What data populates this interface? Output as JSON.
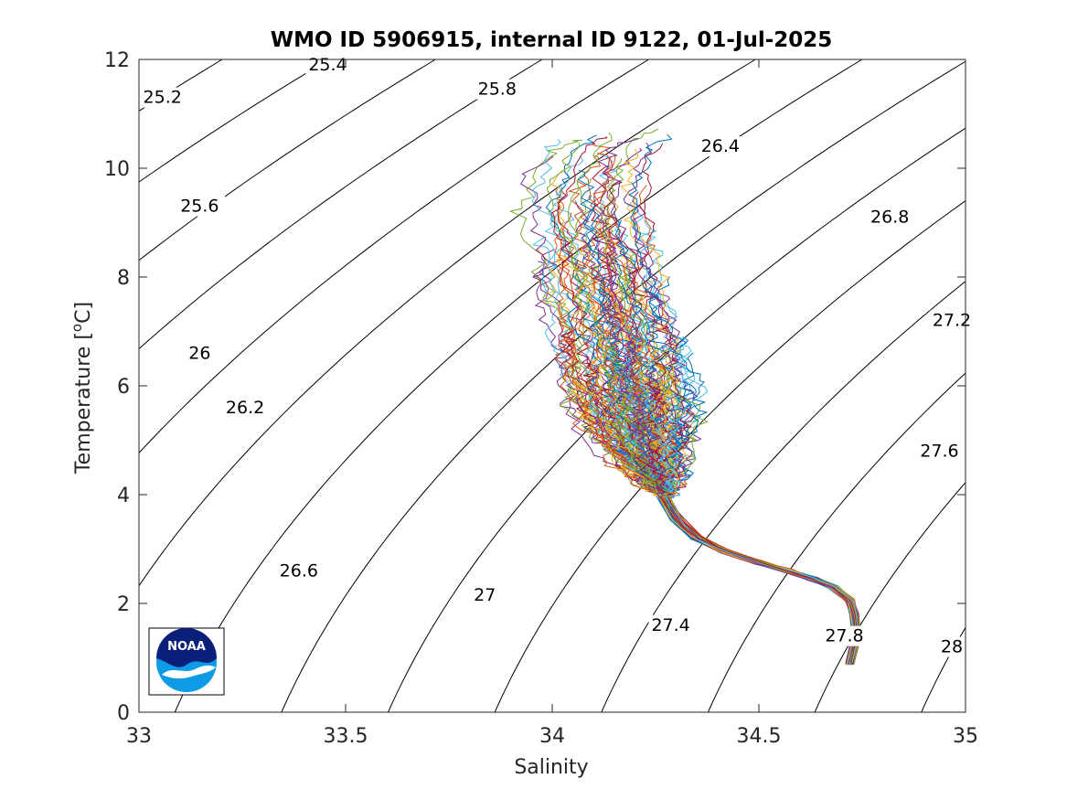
{
  "chart_data": {
    "type": "line",
    "title": "WMO ID 5906915, internal ID 9122, 01-Jul-2025",
    "xlabel": "Salinity",
    "ylabel_main": "Temperature [",
    "ylabel_sup": "o",
    "ylabel_end": "C]",
    "xlim": [
      33,
      35
    ],
    "ylim": [
      0,
      12
    ],
    "xticks": [
      33,
      33.5,
      34,
      34.5,
      35
    ],
    "xtick_labels": [
      "33",
      "33.5",
      "34",
      "34.5",
      "35"
    ],
    "yticks": [
      0,
      2,
      4,
      6,
      8,
      10,
      12
    ],
    "ytick_labels": [
      "0",
      "2",
      "4",
      "6",
      "8",
      "10",
      "12"
    ],
    "grid": false,
    "isopycnals": [
      {
        "sigma": 25.2,
        "label": "25.2",
        "label_s": 33.01,
        "label_t": 11.2
      },
      {
        "sigma": 25.4,
        "label": "25.4",
        "label_s": 33.41,
        "label_t": 11.8
      },
      {
        "sigma": 25.6,
        "label": "25.6",
        "label_s": 33.1,
        "label_t": 9.2
      },
      {
        "sigma": 25.8,
        "label": "25.8",
        "label_s": 33.82,
        "label_t": 11.35
      },
      {
        "sigma": 26.0,
        "label": "26",
        "label_s": 33.12,
        "label_t": 6.5
      },
      {
        "sigma": 26.2,
        "label": "26.2",
        "label_s": 33.21,
        "label_t": 5.5
      },
      {
        "sigma": 26.4,
        "label": "26.4",
        "label_s": 34.36,
        "label_t": 10.3
      },
      {
        "sigma": 26.6,
        "label": "26.6",
        "label_s": 33.34,
        "label_t": 2.5
      },
      {
        "sigma": 26.8,
        "label": "26.8",
        "label_s": 34.77,
        "label_t": 9.0
      },
      {
        "sigma": 27.0,
        "label": "27",
        "label_s": 33.81,
        "label_t": 2.05
      },
      {
        "sigma": 27.2,
        "label": "27.2",
        "label_s": 34.92,
        "label_t": 7.1
      },
      {
        "sigma": 27.4,
        "label": "27.4",
        "label_s": 34.24,
        "label_t": 1.5
      },
      {
        "sigma": 27.6,
        "label": "27.6",
        "label_s": 34.89,
        "label_t": 4.7
      },
      {
        "sigma": 27.8,
        "label": "27.8",
        "label_s": 34.66,
        "label_t": 1.3
      },
      {
        "sigma": 28.0,
        "label": "28",
        "label_s": 34.94,
        "label_t": 1.1
      }
    ],
    "profile_colors": [
      "#0072BD",
      "#D95319",
      "#EDB120",
      "#7E2F8E",
      "#77AC30",
      "#4DBEEE",
      "#A2142F"
    ],
    "profile_count": 140,
    "envelope": {
      "cold_branch": [
        [
          34.72,
          0.9
        ],
        [
          34.73,
          1.2
        ],
        [
          34.735,
          1.5
        ],
        [
          34.73,
          1.8
        ],
        [
          34.72,
          2.05
        ],
        [
          34.68,
          2.3
        ],
        [
          34.63,
          2.45
        ],
        [
          34.57,
          2.6
        ],
        [
          34.5,
          2.75
        ],
        [
          34.42,
          2.95
        ],
        [
          34.35,
          3.2
        ],
        [
          34.3,
          3.55
        ],
        [
          34.27,
          3.95
        ]
      ],
      "core": [
        [
          34.27,
          4.0
        ],
        [
          34.25,
          4.4
        ],
        [
          34.23,
          4.9
        ],
        [
          34.21,
          5.4
        ],
        [
          34.2,
          5.9
        ],
        [
          34.19,
          6.4
        ],
        [
          34.18,
          6.9
        ],
        [
          34.16,
          7.5
        ],
        [
          34.14,
          8.1
        ],
        [
          34.12,
          8.7
        ],
        [
          34.11,
          9.3
        ],
        [
          34.12,
          9.9
        ],
        [
          34.15,
          10.4
        ],
        [
          34.2,
          10.7
        ]
      ]
    }
  },
  "logo": {
    "text": "NOAA",
    "colors": {
      "navy": "#0a1f7a",
      "sky": "#0d9be6",
      "white": "#ffffff"
    }
  }
}
